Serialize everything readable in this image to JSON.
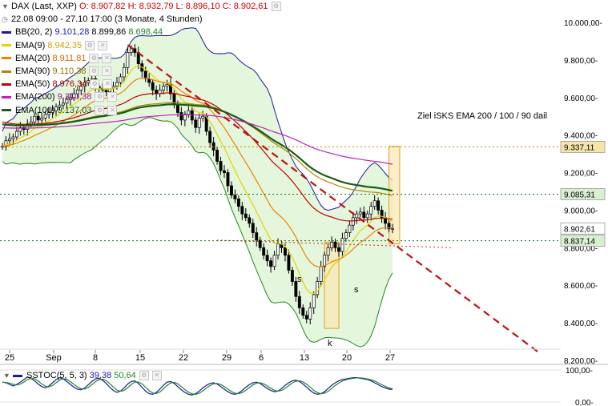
{
  "header": {
    "symbol": "DAX (Last, XXP)",
    "o_label": "O:",
    "o_value": "8.907,82",
    "h_label": "H:",
    "h_value": "8.932,79",
    "l_label": "L:",
    "l_value": "8.896,10",
    "c_label": "C:",
    "c_value": "8.902,61",
    "range": "22.08 09:00 - 27.10 17:00 (3 Monate, 4 Stunden)"
  },
  "indicators": [
    {
      "label": "BB(20, 2)",
      "v1": "9.101,28",
      "v2": "8.899,86",
      "v3": "8.698,44",
      "color": "#1a1aa0",
      "c2": "#228822"
    },
    {
      "label": "EMA(9)",
      "v1": "8.942,35",
      "color": "#e8d000"
    },
    {
      "label": "EMA(20)",
      "v1": "8.911,81",
      "color": "#f08000"
    },
    {
      "label": "EMA(90)",
      "v1": "9.110,38",
      "color": "#b08800"
    },
    {
      "label": "EMA(50)",
      "v1": "8.976,34",
      "color": "#c00000"
    },
    {
      "label": "EMA(200)",
      "v1": "9.310,38",
      "color": "#c020c0"
    },
    {
      "label": "EMA(100)",
      "v1": "9.137,03",
      "color": "#1a5a1a"
    }
  ],
  "annotation": "Ziel iSKS EMA 200 / 100 / 90 dail",
  "pattern_labels": {
    "left": "s",
    "bottom": "k",
    "right": "s"
  },
  "oscillator": {
    "label": "SSTOC(5, 5, 3)",
    "v1": "39,38",
    "v2": "50,64",
    "c1": "#1a1aa0",
    "c2": "#228822"
  },
  "price_tags": [
    {
      "value": 9337.11,
      "text": "9.337,11",
      "bg": "#f5e6a8"
    },
    {
      "value": 9085.31,
      "text": "9.085,31",
      "bg": "#d8f0d0"
    },
    {
      "value": 8902.61,
      "text": "8.902,61",
      "bg": "#ffffff"
    },
    {
      "value": 8837.14,
      "text": "8.837,14",
      "bg": "#d8f0d0"
    }
  ],
  "chart_data": {
    "type": "candlestick",
    "y_axis": {
      "min": 8200,
      "max": 10000,
      "ticks": [
        10000,
        9800,
        9600,
        9400,
        9200,
        9000,
        8800,
        8600,
        8400,
        8200
      ],
      "tick_labels": [
        "10.000,00-",
        "9.800,00-",
        "9.600,00-",
        "9.400,00-",
        "9.200,00-",
        "9.000,00-",
        "8.800,00-",
        "8.600,00-",
        "8.400,00-",
        "8.200,00-"
      ]
    },
    "x_axis": {
      "labels": [
        "25",
        "Sep",
        "8",
        "15",
        "22",
        "29",
        "6",
        "13",
        "20",
        "27"
      ]
    },
    "horizontal_levels": [
      9337.11,
      9085.31,
      8837.14
    ],
    "close": [
      9340,
      9370,
      9380,
      9390,
      9420,
      9440,
      9430,
      9460,
      9470,
      9500,
      9480,
      9490,
      9510,
      9520,
      9530,
      9550,
      9560,
      9570,
      9590,
      9600,
      9620,
      9640,
      9660,
      9680,
      9690,
      9700,
      9660,
      9650,
      9640,
      9630,
      9650,
      9660,
      9680,
      9710,
      9760,
      9840,
      9860,
      9840,
      9780,
      9740,
      9700,
      9680,
      9640,
      9620,
      9640,
      9660,
      9670,
      9620,
      9560,
      9520,
      9480,
      9510,
      9530,
      9480,
      9440,
      9490,
      9500,
      9420,
      9360,
      9320,
      9260,
      9210,
      9200,
      9130,
      9080,
      9060,
      9020,
      8980,
      8960,
      8930,
      8880,
      8840,
      8800,
      8760,
      8730,
      8700,
      8760,
      8820,
      8800,
      8760,
      8680,
      8620,
      8540,
      8480,
      8440,
      8420,
      8480,
      8550,
      8620,
      8700,
      8760,
      8800,
      8830,
      8800,
      8780,
      8850,
      8880,
      8920,
      8960,
      8980,
      8990,
      8960,
      8980,
      9020,
      9050,
      9000,
      8960,
      8930,
      8900,
      8902.61
    ],
    "ema": [
      {
        "name": "EMA(9)",
        "period": 9,
        "color": "#e8d000"
      },
      {
        "name": "EMA(20)",
        "period": 20,
        "color": "#f08000"
      },
      {
        "name": "EMA(50)",
        "period": 50,
        "color": "#c00000"
      },
      {
        "name": "EMA(90)",
        "period": 90,
        "color": "#b08800"
      },
      {
        "name": "EMA(100)",
        "period": 100,
        "color": "#1a5a1a"
      },
      {
        "name": "EMA(200)",
        "period": 200,
        "color": "#c020c0"
      }
    ],
    "bollinger": {
      "period": 20,
      "k": 2
    },
    "trendline": {
      "from": [
        35,
        9880
      ],
      "to": [
        150,
        8240
      ]
    },
    "neckline": {
      "from": [
        60,
        8840
      ],
      "to": [
        126,
        8800
      ]
    },
    "pattern_boxes": [
      {
        "x0": 90,
        "x1": 94,
        "low": 8370,
        "high": 8830
      },
      {
        "x0": 108,
        "x1": 111,
        "low": 8820,
        "high": 9340
      }
    ],
    "stoch": [
      62,
      60,
      55,
      50,
      55,
      62,
      70,
      78,
      74,
      66,
      56,
      48,
      44,
      50,
      60,
      70,
      76,
      72,
      64,
      55,
      46,
      40,
      38,
      44,
      54,
      64,
      72,
      74,
      68,
      58,
      46,
      36,
      30,
      34,
      44,
      56,
      64,
      66,
      58,
      46,
      34,
      26,
      24,
      30,
      40,
      52,
      62,
      64,
      58,
      48,
      38,
      30,
      24,
      22,
      26,
      34,
      44,
      52,
      58,
      60,
      56,
      48,
      40,
      32,
      26,
      24,
      28,
      36,
      46,
      54,
      60,
      62,
      58,
      50,
      42,
      36,
      32,
      34,
      42,
      52,
      60,
      66,
      68,
      64,
      56,
      46,
      36,
      28,
      24,
      26,
      32,
      42,
      52,
      60,
      66,
      70,
      72,
      74,
      76,
      76,
      74,
      72,
      70,
      66,
      60,
      54,
      48,
      44,
      40,
      39.38
    ],
    "stoch_range": [
      0,
      100
    ],
    "stoch_ticks": [
      "100,00-",
      "0,00-"
    ]
  }
}
